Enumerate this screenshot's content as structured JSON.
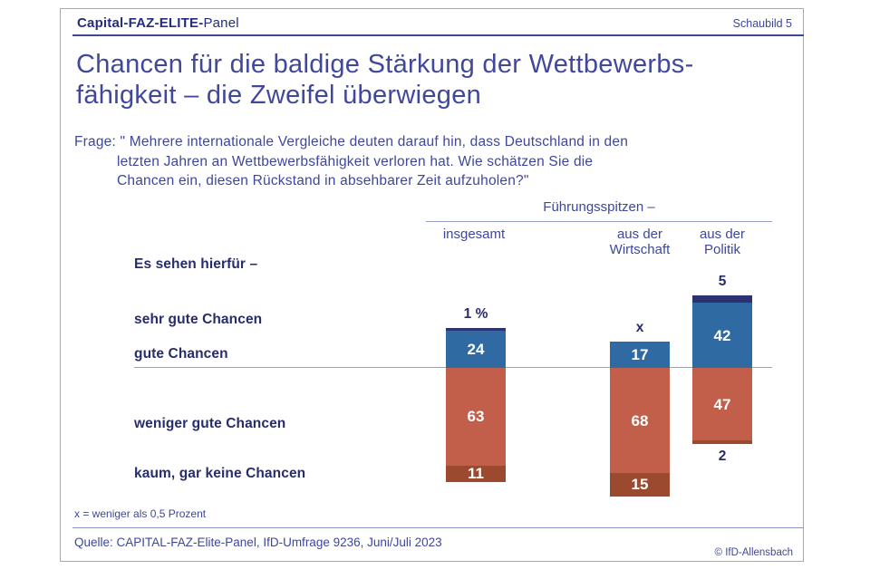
{
  "header": {
    "brand_bold": "Capital-FAZ-ELITE-",
    "brand_regular": "Panel",
    "slide_label": "Schaubild 5"
  },
  "title": {
    "text": "Chancen für die baldige Stärkung der Wettbewerbs-\nfähigkeit – die Zweifel überwiegen"
  },
  "question": {
    "text": "Frage: \" Mehrere internationale Vergleiche deuten darauf hin, dass Deutschland in den\nletzten Jahren an Wettbewerbsfähigkeit verloren hat. Wie schätzen Sie die\nChancen ein, diesen Rückstand in absehbarer Zeit aufzuholen?\""
  },
  "legend_intro": "Es sehen hierfür –",
  "footnote": "x = weniger als 0,5 Prozent",
  "source": "Quelle: CAPITAL-FAZ-Elite-Panel, IfD-Umfrage 9236, Juni/Juli 2023",
  "copyright": "© IfD-Allensbach",
  "chart_data": {
    "type": "bar",
    "stacked": true,
    "unit": "percent",
    "group_header": "Führungsspitzen –",
    "row_labels": [
      "sehr gute Chancen",
      "gute Chancen",
      "weniger gute Chancen",
      "kaum, gar keine Chancen"
    ],
    "colors": {
      "navy": "#2d3173",
      "blue": "#2f6aa3",
      "red": "#c25f4a",
      "brown": "#9c4a2f"
    },
    "series": [
      {
        "name": "sehr gute Chancen",
        "color_key": "navy",
        "values": [
          1,
          0,
          5
        ],
        "displayed": [
          "1 %",
          "x",
          "5"
        ]
      },
      {
        "name": "gute Chancen",
        "color_key": "blue",
        "values": [
          24,
          17,
          42
        ]
      },
      {
        "name": "weniger gute Chancen",
        "color_key": "red",
        "values": [
          63,
          68,
          47
        ]
      },
      {
        "name": "kaum, gar keine Chancen",
        "color_key": "brown",
        "values": [
          11,
          15,
          2
        ]
      }
    ],
    "columns": [
      {
        "header": "insgesamt",
        "top_label": "1 %",
        "above": [
          {
            "key": "navy",
            "value": 1,
            "label": ""
          },
          {
            "key": "blue",
            "value": 24,
            "label": "24"
          }
        ],
        "below": [
          {
            "key": "red",
            "value": 63,
            "label": "63"
          },
          {
            "key": "brown",
            "value": 11,
            "label": "11"
          }
        ],
        "bottom_label": ""
      },
      {
        "header": "aus der\nWirtschaft",
        "top_label": "x",
        "above": [
          {
            "key": "navy",
            "value": 0,
            "label": ""
          },
          {
            "key": "blue",
            "value": 17,
            "label": "17"
          }
        ],
        "below": [
          {
            "key": "red",
            "value": 68,
            "label": "68"
          },
          {
            "key": "brown",
            "value": 15,
            "label": "15"
          }
        ],
        "bottom_label": ""
      },
      {
        "header": "aus der\nPolitik",
        "top_label": "5",
        "above": [
          {
            "key": "navy",
            "value": 5,
            "label": ""
          },
          {
            "key": "blue",
            "value": 42,
            "label": "42"
          }
        ],
        "below": [
          {
            "key": "red",
            "value": 47,
            "label": "47"
          },
          {
            "key": "brown",
            "value": 2,
            "label": ""
          }
        ],
        "bottom_label": "2"
      }
    ]
  }
}
